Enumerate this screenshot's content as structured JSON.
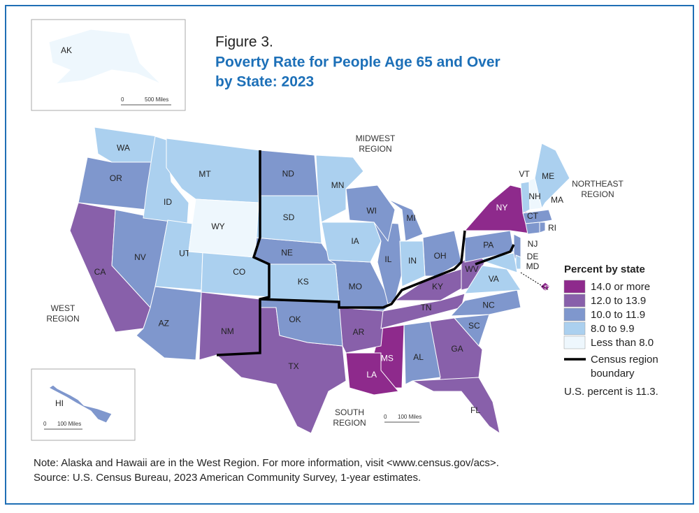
{
  "header": {
    "figure_label": "Figure 3.",
    "title_line1": "Poverty Rate for People Age 65 and Over",
    "title_line2": "by State: 2023"
  },
  "regions": {
    "midwest_line1": "MIDWEST",
    "midwest_line2": "REGION",
    "northeast_line1": "NORTHEAST",
    "northeast_line2": "REGION",
    "west_line1": "WEST",
    "west_line2": "REGION",
    "south_line1": "SOUTH",
    "south_line2": "REGION"
  },
  "legend": {
    "title": "Percent by state",
    "items": [
      {
        "label": "14.0 or more",
        "color": "#8e2a8c",
        "states": [
          "NY",
          "MS",
          "LA",
          "DC"
        ]
      },
      {
        "label": "12.0 to 13.9",
        "color": "#8860aa",
        "states": [
          "CA",
          "NM",
          "TX",
          "AR",
          "TN",
          "KY",
          "WV",
          "GA",
          "FL"
        ]
      },
      {
        "label": "10.0 to 11.9",
        "color": "#7f97cd",
        "states": [
          "OR",
          "NV",
          "AZ",
          "ND",
          "NE",
          "MO",
          "IL",
          "WI",
          "MI",
          "OH",
          "PA",
          "OK",
          "AL",
          "SC",
          "NC",
          "MA",
          "CT",
          "RI",
          "NJ",
          "HI"
        ]
      },
      {
        "label": "8.0 to 9.9",
        "color": "#abd0ef",
        "states": [
          "WA",
          "ID",
          "MT",
          "UT",
          "CO",
          "SD",
          "KS",
          "MN",
          "IA",
          "IN",
          "VA",
          "VT",
          "ME",
          "DE",
          "MD"
        ]
      },
      {
        "label": "Less than 8.0",
        "color": "#eef7fd",
        "states": [
          "WY",
          "NH",
          "AK"
        ]
      }
    ],
    "boundary_line1": "Census region",
    "boundary_line2": "boundary",
    "us_note": "U.S. percent is 11.3."
  },
  "scale_bars": {
    "alaska": {
      "zero": "0",
      "distance": "500 Miles"
    },
    "hawaii": {
      "zero": "0",
      "distance": "100 Miles"
    },
    "mainland": {
      "zero": "0",
      "distance": "100 Miles"
    }
  },
  "footer": {
    "note": "Note: Alaska and Hawaii are in the West Region. For more information, visit <www.census.gov/acs>.",
    "source": "Source: U.S. Census Bureau, 2023 American Community Survey, 1-year estimates."
  }
}
